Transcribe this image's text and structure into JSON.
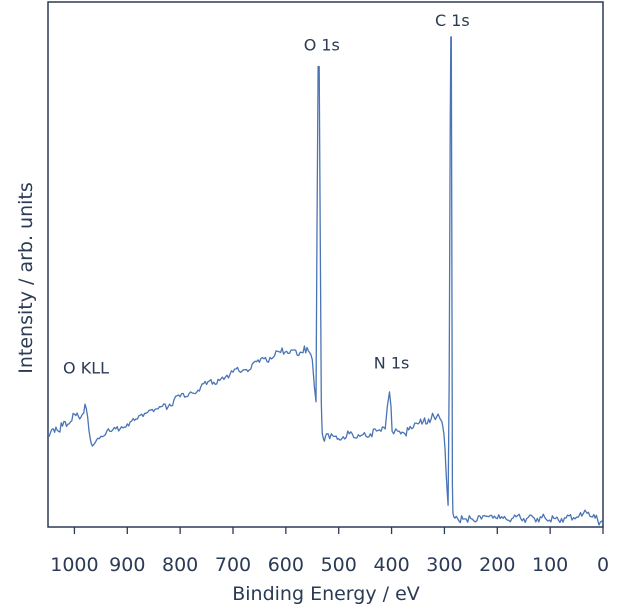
{
  "chart_data": {
    "type": "line",
    "title": "",
    "xlabel": "Binding Energy / eV",
    "ylabel": "Intensity / arb. units",
    "xlim": [
      1050,
      0
    ],
    "ylim": [
      0,
      100
    ],
    "x_reversed": true,
    "y_ticks_shown": false,
    "grid": false,
    "line_color": "#4a74b4",
    "axis_color": "#2b3a55",
    "x_ticks": [
      {
        "value": 1000,
        "label": "1000"
      },
      {
        "value": 900,
        "label": "900"
      },
      {
        "value": 800,
        "label": "800"
      },
      {
        "value": 700,
        "label": "700"
      },
      {
        "value": 600,
        "label": "600"
      },
      {
        "value": 500,
        "label": "500"
      },
      {
        "value": 400,
        "label": "400"
      },
      {
        "value": 300,
        "label": "300"
      },
      {
        "value": 200,
        "label": "200"
      },
      {
        "value": 100,
        "label": "100"
      },
      {
        "value": 0,
        "label": "0"
      }
    ],
    "annotations": [
      {
        "text": "O 1s",
        "x": 532,
        "y": 95
      },
      {
        "text": "C 1s",
        "x": 285,
        "y": 100
      },
      {
        "text": "O KLL",
        "x": 978,
        "y": 29.5
      },
      {
        "text": "N 1s",
        "x": 400,
        "y": 30.5
      }
    ],
    "series": [
      {
        "x": [
          1050,
          1040,
          1030,
          1020,
          1010,
          1000,
          990,
          985,
          980,
          975,
          970,
          968,
          966,
          962,
          950,
          930,
          900,
          870,
          850,
          820,
          800,
          780,
          750,
          720,
          700,
          680,
          650,
          630,
          610,
          590,
          570,
          560,
          555,
          550,
          546,
          543,
          541,
          539,
          537,
          535,
          533,
          532,
          531,
          529,
          527,
          525,
          523,
          520,
          517,
          514,
          510,
          500,
          480,
          460,
          440,
          420,
          412,
          408,
          404,
          401,
          399,
          396,
          392,
          385,
          375,
          365,
          350,
          340,
          330,
          320,
          312,
          308,
          305,
          303,
          301,
          299,
          297,
          295,
          293,
          291,
          289,
          288,
          287,
          286,
          285,
          284,
          283,
          282,
          280,
          275,
          265,
          250,
          230,
          200,
          170,
          150,
          130,
          110,
          90,
          70,
          50,
          40,
          36,
          34,
          30,
          25,
          20,
          15,
          10,
          5,
          0
        ],
        "y": [
          18.5,
          19.5,
          19,
          21,
          20.5,
          22.5,
          21.5,
          22.5,
          24.5,
          22,
          17.5,
          16.5,
          16,
          16.5,
          18,
          19,
          20.5,
          22,
          23,
          24.5,
          26,
          27,
          28.5,
          30,
          31,
          31.5,
          33,
          34,
          35,
          35.5,
          35,
          36,
          35,
          33.5,
          28,
          25,
          60,
          93,
          93,
          60,
          25,
          21,
          18.5,
          17.5,
          17,
          18,
          18.5,
          18.5,
          17.5,
          18.5,
          18,
          17.5,
          18.5,
          18,
          18.5,
          19,
          19.5,
          24,
          27,
          24,
          19,
          18.5,
          19.5,
          19,
          18.5,
          20,
          20.5,
          21,
          21.5,
          22,
          22.5,
          21.5,
          21,
          20,
          18.5,
          15.5,
          11,
          7,
          4,
          30,
          80,
          99,
          99,
          60,
          8,
          2.5,
          2,
          1.6,
          1.4,
          1.3,
          1.2,
          1.3,
          1.2,
          1.3,
          1.4,
          1.3,
          1.4,
          1.5,
          1.3,
          1.4,
          1.6,
          1.8,
          2.6,
          3,
          2.4,
          1.8,
          1.6,
          1.4,
          1,
          0.6,
          0.3
        ]
      }
    ]
  }
}
